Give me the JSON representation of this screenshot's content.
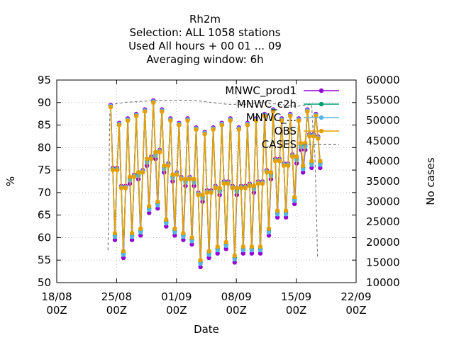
{
  "chart_data": {
    "type": "line",
    "title_lines": [
      "Rh2m",
      "Selection: ALL    1058 stations",
      "Used  All hours  + 00 01 ... 09",
      "Averaging window:  6h"
    ],
    "xlabel": "Date",
    "ylabel": "%",
    "y2label": "No cases",
    "x_ticks": [
      "18/08\n00Z",
      "25/08\n00Z",
      "01/09\n00Z",
      "08/09\n00Z",
      "15/09\n00Z",
      "22/09\n00Z"
    ],
    "x_range_days": [
      0,
      35
    ],
    "ylim": [
      50,
      95
    ],
    "y_ticks": [
      50,
      55,
      60,
      65,
      70,
      75,
      80,
      85,
      90,
      95
    ],
    "y2lim": [
      10000,
      60000
    ],
    "y2_ticks": [
      10000,
      15000,
      20000,
      25000,
      30000,
      35000,
      40000,
      45000,
      50000,
      55000,
      60000
    ],
    "grid": true,
    "legend_position": "top-right",
    "series": [
      {
        "name": "MNWC_prod1",
        "color": "#9400d3",
        "marker": "circle",
        "amplitude_bias": -1.5
      },
      {
        "name": "MNWC_c2h",
        "color": "#009e73",
        "marker": "circle",
        "amplitude_bias": -0.5
      },
      {
        "name": "MNWC_...",
        "color": "#56b4e9",
        "marker": "circle",
        "amplitude_bias": -0.8
      },
      {
        "name": "OBS",
        "color": "#e69f00",
        "marker": "circle",
        "amplitude_bias": 0.0
      },
      {
        "name": "CASES",
        "color": "#808080",
        "marker": "none",
        "dashed": true
      }
    ],
    "daily_cycle": {
      "start_day": 6.3,
      "end_day": 30.8,
      "step_hours": 6,
      "daily_max": [
        89,
        85,
        86,
        87,
        88,
        90,
        88,
        86,
        85,
        86,
        84,
        83,
        84,
        85,
        86,
        84,
        85,
        86,
        87,
        88,
        86,
        87,
        86,
        88,
        87
      ],
      "daily_min": [
        61,
        57,
        61,
        62,
        67,
        68,
        64,
        62,
        61,
        60,
        55,
        57,
        58,
        59,
        56,
        58,
        58,
        58,
        62,
        66,
        66,
        69,
        76,
        77,
        77
      ]
    },
    "cases": {
      "x": [
        6.0,
        6.2,
        6.5,
        8.0,
        12.0,
        16.0,
        18.0,
        20.0,
        22.0,
        24.0,
        26.0,
        28.0,
        29.8,
        30.0,
        30.2,
        30.5
      ],
      "y": [
        18000,
        52000,
        54000,
        54500,
        55000,
        55000,
        54500,
        54000,
        54000,
        54500,
        54000,
        53500,
        54000,
        46000,
        41000,
        16000
      ]
    }
  }
}
